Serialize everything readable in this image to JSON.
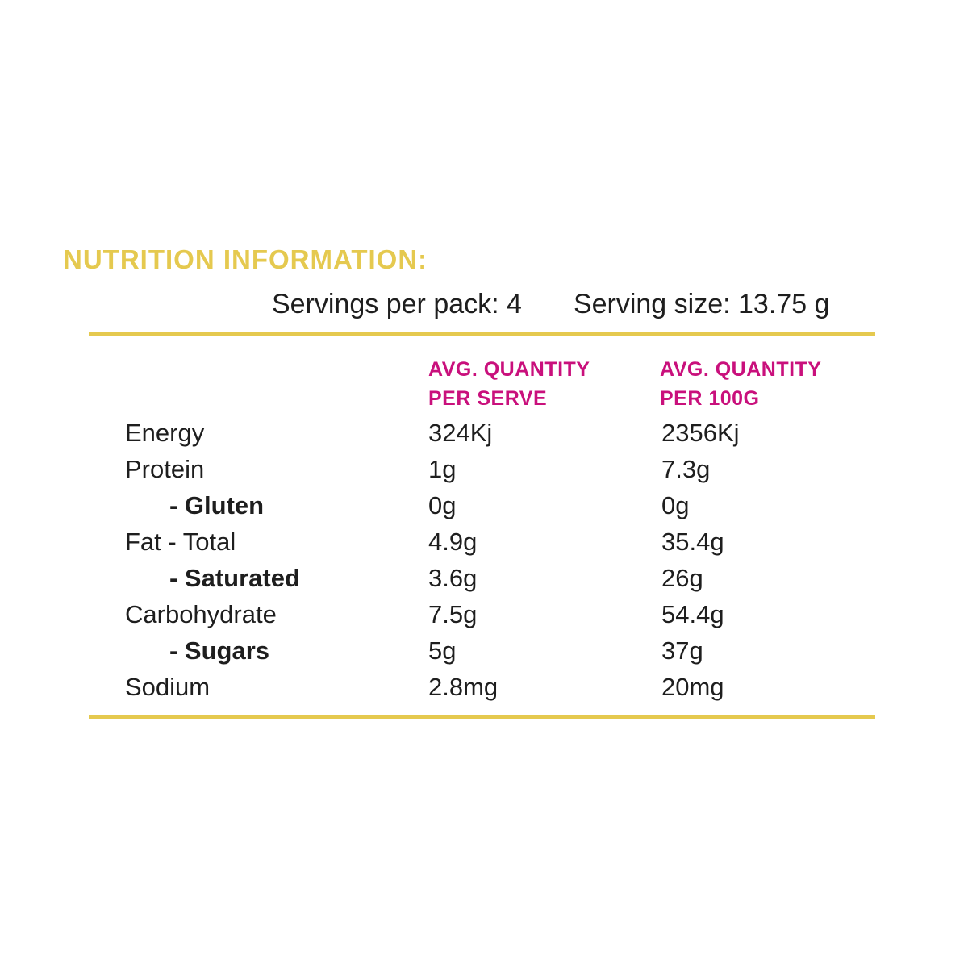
{
  "title": "NUTRITION INFORMATION:",
  "serving_info": {
    "servings_per_pack": "Servings per pack: 4",
    "serving_size": "Serving size: 13.75 g"
  },
  "table": {
    "column_headers": [
      {
        "line1": "AVG. QUANTITY",
        "line2": "PER SERVE"
      },
      {
        "line1": "AVG. QUANTITY",
        "line2": "PER 100G"
      }
    ],
    "rows": [
      {
        "label": "Energy",
        "per_serve": "324Kj",
        "per_100g": "2356Kj"
      },
      {
        "label": "Protein",
        "per_serve": "1g",
        "per_100g": "7.3g"
      },
      {
        "label": "- Gluten",
        "per_serve": "0g",
        "per_100g": "0g"
      },
      {
        "label": "Fat - Total",
        "per_serve": "4.9g",
        "per_100g": "35.4g"
      },
      {
        "label": "- Saturated",
        "per_serve": "3.6g",
        "per_100g": "26g"
      },
      {
        "label": "Carbohydrate",
        "per_serve": "7.5g",
        "per_100g": "54.4g"
      },
      {
        "label": "- Sugars",
        "per_serve": "5g",
        "per_100g": "37g"
      },
      {
        "label": "Sodium",
        "per_serve": "2.8mg",
        "per_100g": "20mg"
      }
    ]
  },
  "colors": {
    "gold": "#E5C94F",
    "magenta": "#C9107C",
    "text": "#1E1E1E",
    "background": "#FFFFFF"
  }
}
